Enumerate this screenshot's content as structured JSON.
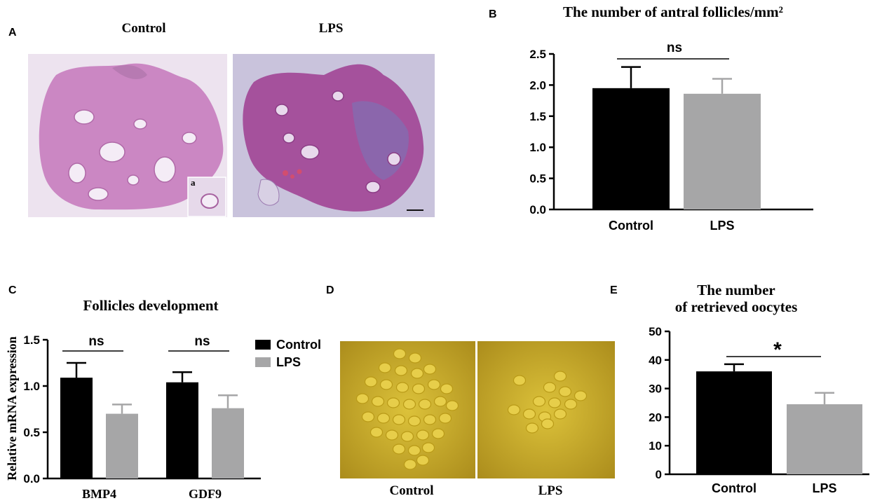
{
  "panel_letters": {
    "a": "A",
    "b": "B",
    "c": "C",
    "d": "D",
    "e": "E"
  },
  "panel_a": {
    "label_control": "Control",
    "label_lps": "LPS",
    "inset_label": "a",
    "colors": {
      "background": "#ece2ee",
      "tissue": "#c87fbf",
      "tissue_lps": "#a34b98",
      "stroma": "#8c6fb0"
    }
  },
  "panel_d": {
    "label_control": "Control",
    "label_lps": "LPS",
    "colors": {
      "dish": "#d6bb2a",
      "oocyte": "#e7ce4a",
      "oocyte_rim": "#b99a17"
    }
  },
  "colors": {
    "control": "#000000",
    "lps": "#a6a6a7"
  },
  "chart_data": [
    {
      "panel": "B",
      "type": "bar",
      "title": "The number of antral follicles/mm²",
      "categories": [
        "Control",
        "LPS"
      ],
      "values": [
        1.95,
        1.86
      ],
      "errors": [
        0.34,
        0.24
      ],
      "ylim": [
        0,
        2.5
      ],
      "yticks": [
        "0.0",
        "0.5",
        "1.0",
        "1.5",
        "2.0",
        "2.5"
      ],
      "ylabel": "",
      "annotations": [
        {
          "text": "ns",
          "between": [
            "Control",
            "LPS"
          ]
        }
      ]
    },
    {
      "panel": "C",
      "type": "bar",
      "title": "Follicles development",
      "ylabel": "Relative mRNA expression",
      "categories": [
        "BMP4",
        "GDF9"
      ],
      "series": [
        {
          "name": "Control",
          "values": [
            1.09,
            1.04
          ],
          "errors": [
            0.16,
            0.11
          ]
        },
        {
          "name": "LPS",
          "values": [
            0.7,
            0.76
          ],
          "errors": [
            0.1,
            0.14
          ]
        }
      ],
      "ylim": [
        0,
        1.5
      ],
      "yticks": [
        "0.0",
        "0.5",
        "1.0",
        "1.5"
      ],
      "legend": "right",
      "annotations": [
        {
          "text": "ns",
          "group": "BMP4"
        },
        {
          "text": "ns",
          "group": "GDF9"
        }
      ]
    },
    {
      "panel": "E",
      "type": "bar",
      "title": [
        "The number",
        "of retrieved oocytes"
      ],
      "categories": [
        "Control",
        "LPS"
      ],
      "values": [
        36,
        24.5
      ],
      "errors": [
        2.5,
        4.0
      ],
      "ylim": [
        0,
        50
      ],
      "yticks": [
        "0",
        "10",
        "20",
        "30",
        "40",
        "50"
      ],
      "ylabel": "",
      "annotations": [
        {
          "text": "*",
          "between": [
            "Control",
            "LPS"
          ]
        }
      ]
    }
  ]
}
